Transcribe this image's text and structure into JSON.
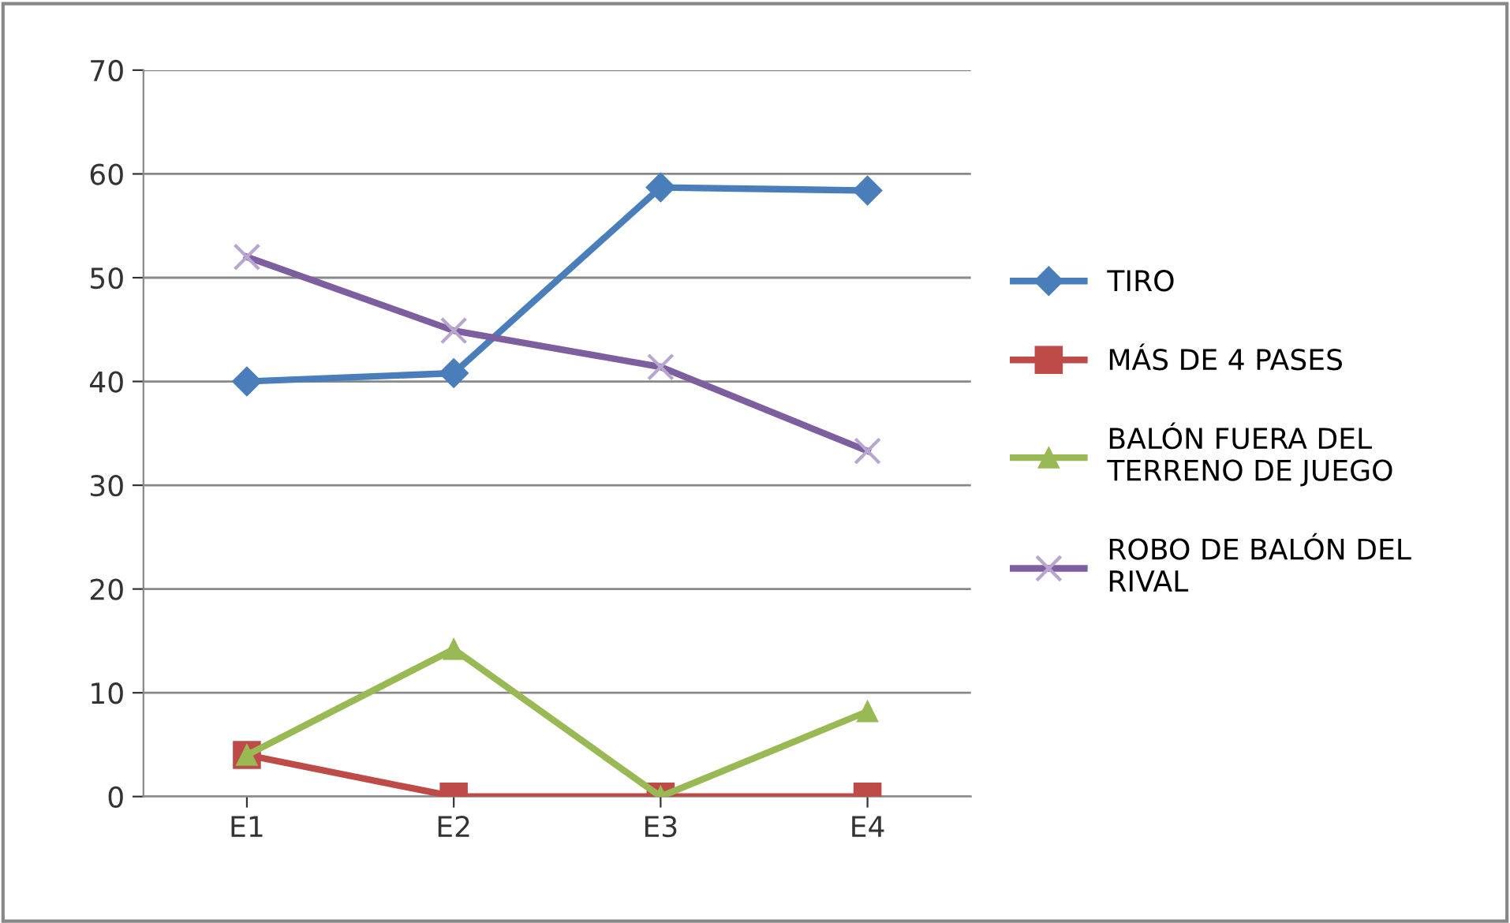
{
  "chart_data": {
    "type": "line",
    "categories": [
      "E1",
      "E2",
      "E3",
      "E4"
    ],
    "series": [
      {
        "name": "TIRO",
        "color": "#4a7ebb",
        "marker": "diamond",
        "values": [
          40.0,
          40.8,
          58.7,
          58.4
        ]
      },
      {
        "name": "MÁS DE 4 PASES",
        "color": "#be4b48",
        "marker": "square",
        "values": [
          4.0,
          0,
          0,
          0
        ]
      },
      {
        "name": "BALÓN FUERA DEL\nTERRENO DE JUEGO",
        "color": "#98b954",
        "marker": "triangle",
        "values": [
          4.0,
          14.2,
          0,
          8.2
        ]
      },
      {
        "name": "ROBO DE BALÓN DEL\nRIVAL",
        "color": "#7d5fa0",
        "marker": "cross",
        "values": [
          52.0,
          44.9,
          41.4,
          33.3
        ]
      }
    ],
    "ylim": [
      0,
      70
    ],
    "yticks": [
      0,
      10,
      20,
      30,
      40,
      50,
      60,
      70
    ],
    "grid": "y",
    "legend": "right",
    "line_style": "solid"
  }
}
